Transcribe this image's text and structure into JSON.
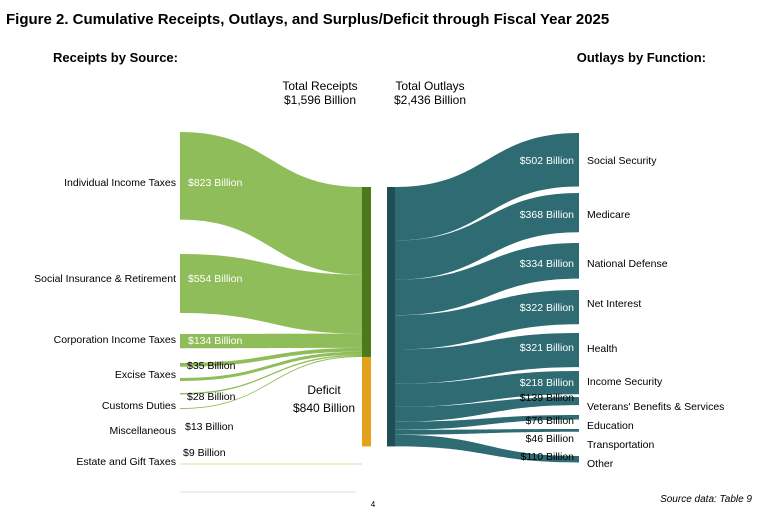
{
  "chart_data": {
    "type": "sankey",
    "title": "Figure 2. Cumulative Receipts, Outlays, and Surplus/Deficit through Fiscal Year 2025",
    "left_heading": "Receipts by Source:",
    "right_heading": "Outlays by Function:",
    "receipts_total": {
      "label": "Total Receipts",
      "value": "$1,596 Billion",
      "amount": 1596
    },
    "outlays_total": {
      "label": "Total Outlays",
      "value": "$2,436 Billion",
      "amount": 2436
    },
    "deficit": {
      "label": "Deficit",
      "value": "$840 Billion",
      "amount": 840
    },
    "receipts": [
      {
        "name": "Individual Income Taxes",
        "value_label": "$823 Billion",
        "amount": 823
      },
      {
        "name": "Social Insurance & Retirement",
        "value_label": "$554 Billion",
        "amount": 554
      },
      {
        "name": "Corporation Income Taxes",
        "value_label": "$134 Billion",
        "amount": 134
      },
      {
        "name": "Excise Taxes",
        "value_label": "$35 Billion",
        "amount": 35
      },
      {
        "name": "Customs Duties",
        "value_label": "$28 Billion",
        "amount": 28
      },
      {
        "name": "Miscellaneous",
        "value_label": "$13 Billion",
        "amount": 13
      },
      {
        "name": "Estate and Gift Taxes",
        "value_label": "$9 Billion",
        "amount": 9
      }
    ],
    "outlays": [
      {
        "name": "Social Security",
        "value_label": "$502 Billion",
        "amount": 502
      },
      {
        "name": "Medicare",
        "value_label": "$368 Billion",
        "amount": 368
      },
      {
        "name": "National Defense",
        "value_label": "$334 Billion",
        "amount": 334
      },
      {
        "name": "Net Interest",
        "value_label": "$322 Billion",
        "amount": 322
      },
      {
        "name": "Health",
        "value_label": "$321 Billion",
        "amount": 321
      },
      {
        "name": "Income Security",
        "value_label": "$218 Billion",
        "amount": 218
      },
      {
        "name": "Veterans' Benefits & Services",
        "value_label": "$139 Billion",
        "amount": 139
      },
      {
        "name": "Education",
        "value_label": "$76 Billion",
        "amount": 76
      },
      {
        "name": "Transportation",
        "value_label": "$46 Billion",
        "amount": 46
      },
      {
        "name": "Other",
        "value_label": "$110 Billion",
        "amount": 110
      }
    ],
    "colors": {
      "receipts_flow": "#8fbd5a",
      "receipts_bar": "#4a7a1a",
      "deficit_bar": "#e3a21a",
      "outlays_flow": "#2e6b73",
      "outlays_bar": "#1f4e57"
    }
  },
  "footer": {
    "page_number": "4",
    "source": "Source data: Table 9"
  }
}
